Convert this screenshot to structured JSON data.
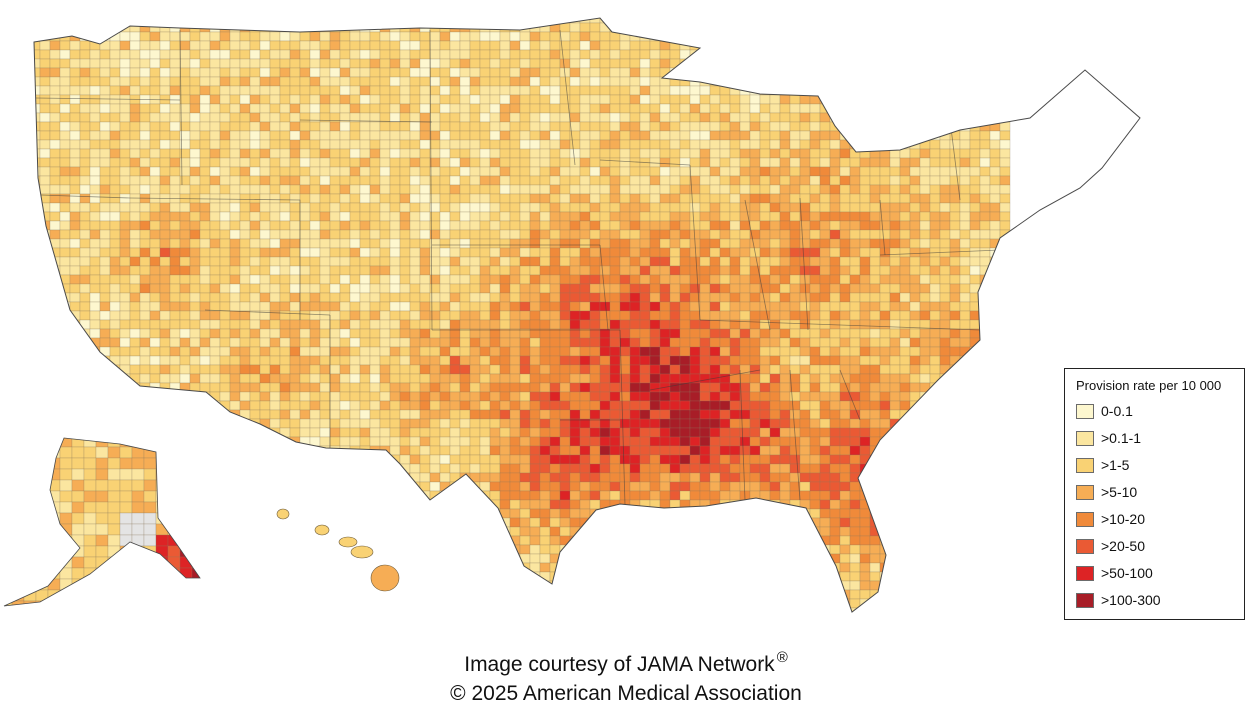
{
  "legend": {
    "title": "Provision rate per 10 000",
    "items": [
      {
        "label": "0-0.1",
        "color": "#fdf7cf"
      },
      {
        "label": ">0.1-1",
        "color": "#fbe6a0"
      },
      {
        "label": ">1-5",
        "color": "#f9d274"
      },
      {
        "label": ">5-10",
        "color": "#f6ad55"
      },
      {
        "label": ">10-20",
        "color": "#f08a3a"
      },
      {
        "label": ">20-50",
        "color": "#ea5a34"
      },
      {
        "label": ">50-100",
        "color": "#dd2325"
      },
      {
        "label": ">100-300",
        "color": "#a81d27"
      }
    ]
  },
  "credit": {
    "line1": "Image courtesy of JAMA Network",
    "registered_mark": "®",
    "line2": "© 2025 American Medical Association"
  }
}
